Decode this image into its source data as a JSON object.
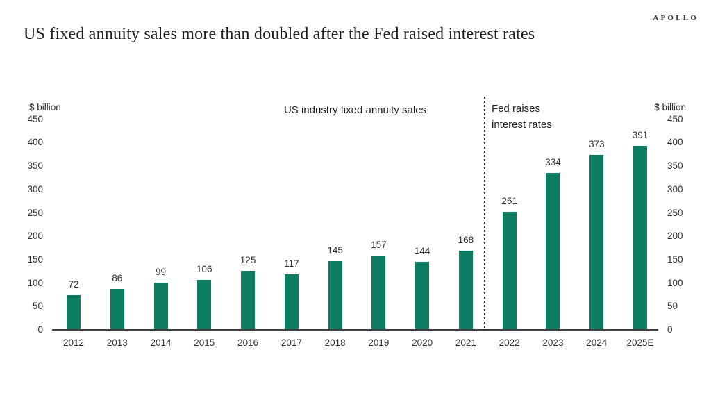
{
  "brand": {
    "logo": "APOLLO"
  },
  "page_title": "US fixed annuity sales more than doubled after the Fed raised interest rates",
  "chart_data": {
    "type": "bar",
    "title": "US industry fixed annuity sales",
    "ylabel_left": "$ billion",
    "ylabel_right": "$ billion",
    "categories": [
      "2012",
      "2013",
      "2014",
      "2015",
      "2016",
      "2017",
      "2018",
      "2019",
      "2020",
      "2021",
      "2022",
      "2023",
      "2024",
      "2025E"
    ],
    "values": [
      72,
      86,
      99,
      106,
      125,
      117,
      145,
      157,
      144,
      168,
      251,
      334,
      373,
      391
    ],
    "ylim": [
      0,
      450
    ],
    "ytick_step": 50,
    "grid": false,
    "legend": "none",
    "bar_color": "#0e7c63",
    "value_labels_shown": true,
    "annotation": {
      "lines": [
        "Fed raises",
        "interest rates"
      ],
      "divider_between": [
        "2021",
        "2022"
      ]
    }
  }
}
